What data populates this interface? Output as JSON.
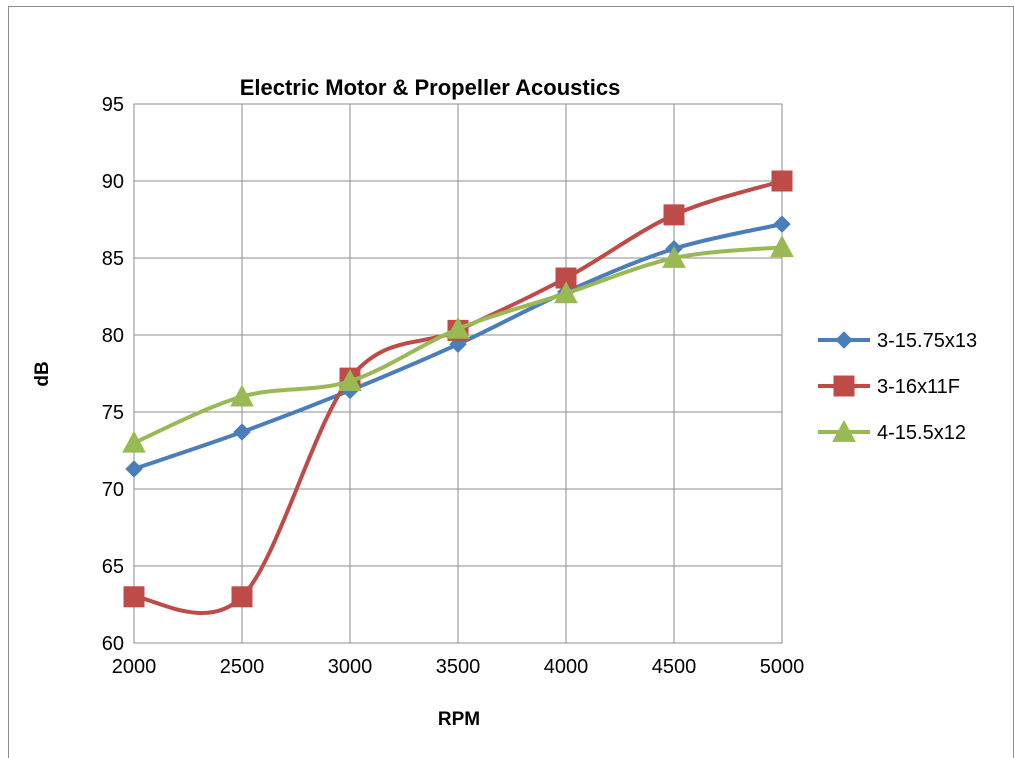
{
  "chart_data": {
    "type": "line",
    "title": "Electric Motor  & Propeller Acoustics",
    "xlabel": "RPM",
    "ylabel": "dB",
    "x": [
      2000,
      2500,
      3000,
      3500,
      4000,
      4500,
      5000
    ],
    "xlim": [
      2000,
      5000
    ],
    "ylim": [
      60,
      95
    ],
    "yticks": [
      60,
      65,
      70,
      75,
      80,
      85,
      90,
      95
    ],
    "grid": true,
    "smooth": true,
    "legend_position": "right",
    "series": [
      {
        "name": "3-15.75x13",
        "color": "#4a7ebb",
        "marker": "diamond",
        "values": [
          71.3,
          73.7,
          76.4,
          79.4,
          82.8,
          85.6,
          87.2
        ]
      },
      {
        "name": "3-16x11F",
        "color": "#be4b48",
        "marker": "square",
        "values": [
          63.0,
          63.0,
          77.2,
          80.3,
          83.7,
          87.8,
          90.0
        ]
      },
      {
        "name": "4-15.5x12",
        "color": "#98b954",
        "marker": "triangle",
        "values": [
          73.0,
          76.0,
          77.0,
          80.4,
          82.7,
          85.0,
          85.7
        ]
      }
    ]
  }
}
